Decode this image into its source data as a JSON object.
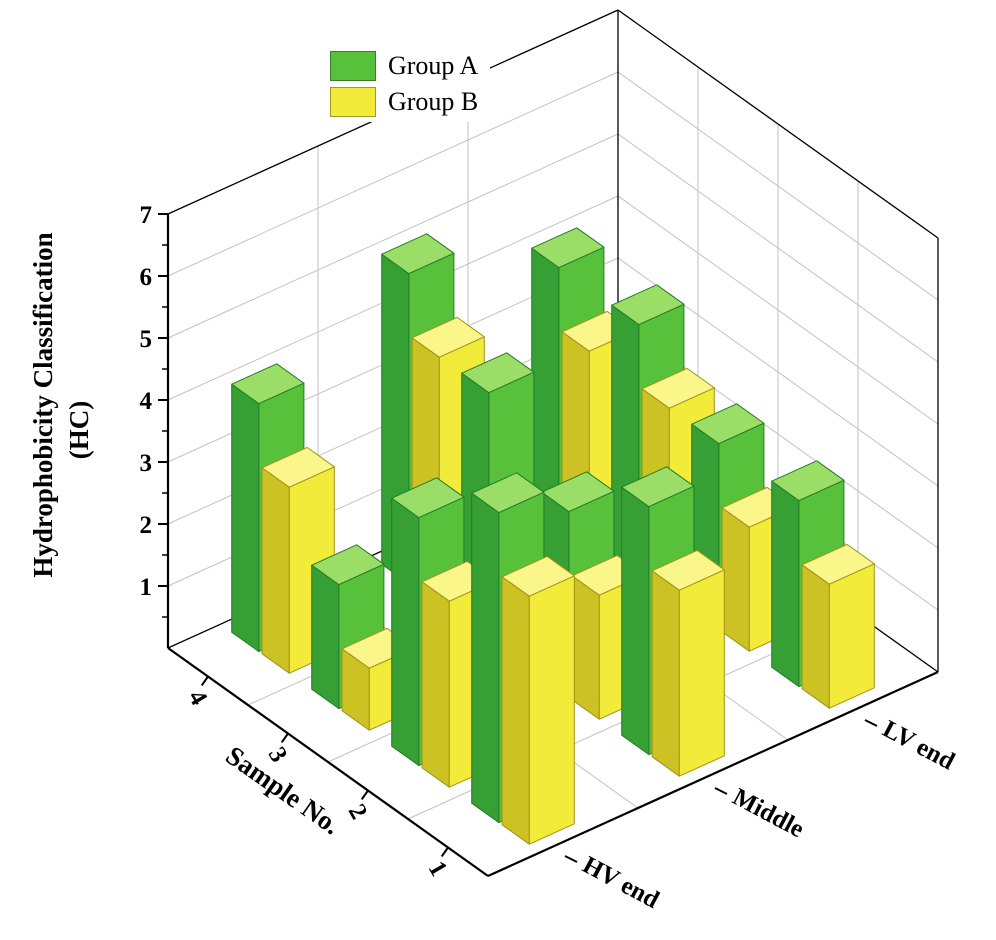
{
  "window": {
    "background": "#ffffff"
  },
  "legend": {
    "items": [
      {
        "label": "Group A"
      },
      {
        "label": "Group B"
      }
    ]
  },
  "axes": {
    "value_axis": {
      "title_line1": "Hydrophobicity Classification",
      "title_line2": "(HC)",
      "min": 0,
      "max": 7,
      "tick_labels": [
        "1",
        "2",
        "3",
        "4",
        "5",
        "6",
        "7"
      ]
    },
    "sample_axis": {
      "title": "Sample No.",
      "categories": [
        "1",
        "2",
        "3",
        "4"
      ],
      "tick_labels_display_order": [
        "4",
        "3",
        "2",
        "1"
      ]
    },
    "position_axis": {
      "tick_labels": [
        "HV end",
        "Middle",
        "LV end"
      ]
    }
  },
  "chart_data": {
    "type": "bar",
    "projection": "3d",
    "value_axis_label": "Hydrophobicity Classification (HC)",
    "ylim": [
      0,
      7
    ],
    "grid": true,
    "legend_position": "top-inside",
    "categories_position": [
      "HV end",
      "Middle",
      "LV end"
    ],
    "categories_sample": [
      "1",
      "2",
      "3",
      "4"
    ],
    "series": [
      {
        "name": "Group A",
        "colors": {
          "top": "#9ade67",
          "side_light": "#58c13c",
          "side_dark": "#37a035",
          "edge": "#237c26",
          "legend": "#58c13c"
        },
        "values": {
          "HV end": [
            5,
            4,
            2,
            4
          ],
          "Middle": [
            4,
            3,
            4,
            5
          ],
          "LV end": [
            3,
            3,
            4,
            4
          ]
        }
      },
      {
        "name": "Group B",
        "colors": {
          "top": "#fbf689",
          "side_light": "#f3eb3a",
          "side_dark": "#cdc223",
          "edge": "#a0931a",
          "legend": "#f3eb3a"
        },
        "values": {
          "HV end": [
            4,
            3,
            1,
            3
          ],
          "Middle": [
            3,
            2,
            2,
            4
          ],
          "LV end": [
            2,
            2,
            3,
            3
          ]
        }
      }
    ]
  },
  "style": {
    "axis_color": "#000000",
    "grid_color": "#c2c2c2",
    "font_color": "#000000"
  }
}
